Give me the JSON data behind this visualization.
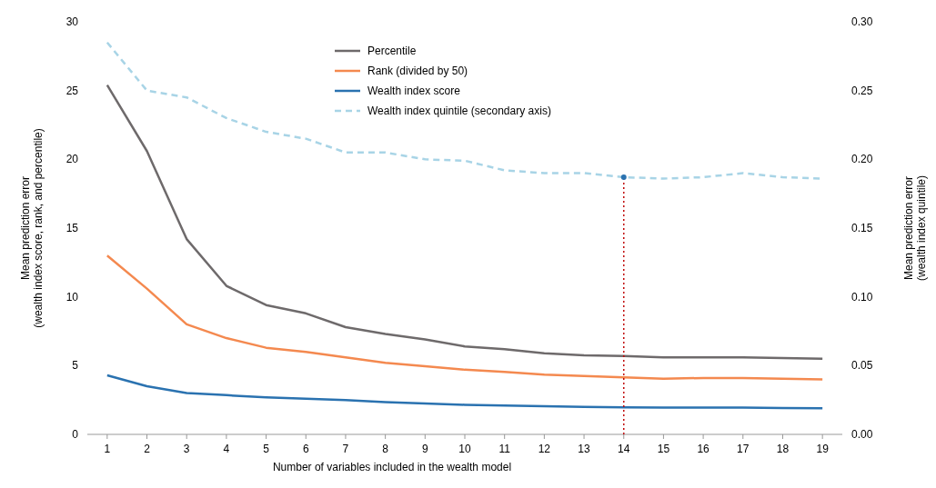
{
  "chart_data": {
    "type": "line",
    "xlabel": "Number of variables included in the wealth model",
    "ylabel": "Mean prediction error\n(wealth index score, rank, and percentile)",
    "y2label": "Mean prediction error\n(wealth index quintile)",
    "x": [
      1,
      2,
      3,
      4,
      5,
      6,
      7,
      8,
      9,
      10,
      11,
      12,
      13,
      14,
      15,
      16,
      17,
      18,
      19
    ],
    "xlim": [
      0.5,
      19.5
    ],
    "xticks": [
      1,
      2,
      3,
      4,
      5,
      6,
      7,
      8,
      9,
      10,
      11,
      12,
      13,
      14,
      15,
      16,
      17,
      18,
      19
    ],
    "ylim": [
      0,
      30
    ],
    "yticks": [
      0,
      5,
      10,
      15,
      20,
      25,
      30
    ],
    "y2lim": [
      0,
      0.3
    ],
    "y2ticks": [
      {
        "value": 0,
        "label": "0.00"
      },
      {
        "value": 0.05,
        "label": "0.05"
      },
      {
        "value": 0.1,
        "label": "0.10"
      },
      {
        "value": 0.15,
        "label": "0.15"
      },
      {
        "value": 0.2,
        "label": "0.20"
      },
      {
        "value": 0.25,
        "label": "0.25"
      },
      {
        "value": 0.3,
        "label": "0.30"
      }
    ],
    "legend": "top",
    "grid": false,
    "ref_lines": [
      {
        "axis": "x",
        "value": 14,
        "color": "#c00000",
        "line_style": "dotted"
      }
    ],
    "series": [
      {
        "name": "Percentile",
        "color": "#6e6a6b",
        "values": [
          25.4,
          20.6,
          14.2,
          10.8,
          9.4,
          8.8,
          7.8,
          7.3,
          6.9,
          6.4,
          6.2,
          5.9,
          5.75,
          5.7,
          5.6,
          5.6,
          5.6,
          5.55,
          5.5
        ]
      },
      {
        "name": "Rank (divided by 50)",
        "color": "#f4894f",
        "values": [
          13.0,
          10.6,
          8.0,
          7.0,
          6.3,
          6.0,
          5.6,
          5.2,
          4.95,
          4.7,
          4.55,
          4.35,
          4.25,
          4.15,
          4.05,
          4.1,
          4.1,
          4.05,
          4.0
        ]
      },
      {
        "name": "Wealth index score",
        "color": "#2a72b0",
        "values": [
          4.3,
          3.5,
          3.0,
          2.85,
          2.7,
          2.6,
          2.5,
          2.35,
          2.25,
          2.15,
          2.1,
          2.05,
          2.0,
          1.97,
          1.95,
          1.95,
          1.95,
          1.92,
          1.9
        ]
      },
      {
        "name": "Wealth index quintile (secondary axis)",
        "color": "#a8d4e6",
        "axis": "y2",
        "line_style": "dashed",
        "values": [
          0.285,
          0.25,
          0.245,
          0.23,
          0.22,
          0.215,
          0.205,
          0.205,
          0.2,
          0.199,
          0.192,
          0.19,
          0.19,
          0.187,
          0.186,
          0.187,
          0.19,
          0.187,
          0.186
        ]
      }
    ]
  }
}
